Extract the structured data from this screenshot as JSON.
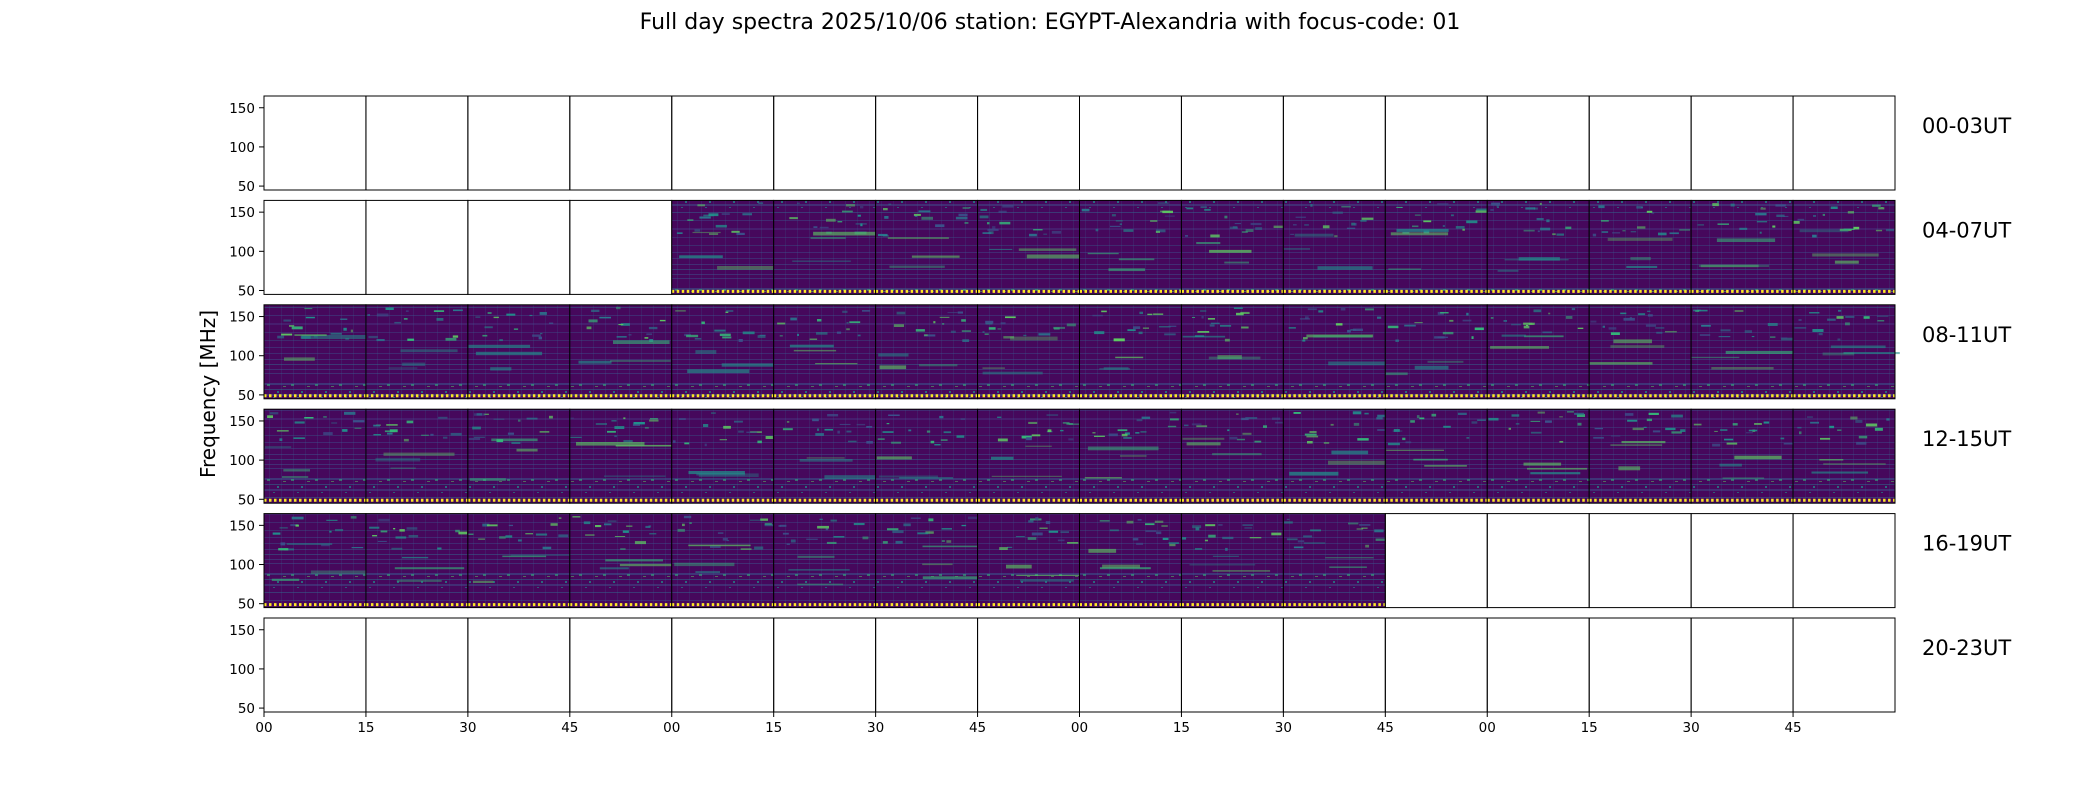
{
  "chart_data": {
    "type": "heatmap",
    "title": "Full day spectra 2025/10/06 station: EGYPT-Alexandria with focus-code: 01",
    "ylabel": "Frequency [MHz]",
    "xlabel": "",
    "ylim": [
      45,
      165
    ],
    "yticks": [
      "50",
      "100",
      "150"
    ],
    "xticks": [
      "00",
      "15",
      "30",
      "45",
      "00",
      "15",
      "30",
      "45",
      "00",
      "15",
      "30",
      "45",
      "00",
      "15",
      "30",
      "45"
    ],
    "colormap": "viridis",
    "colors": {
      "low": "#440154",
      "mid": "#21918c",
      "high": "#fde725",
      "frame": "#000000"
    },
    "rows": [
      {
        "label": "00-03UT",
        "panels_with_data": []
      },
      {
        "label": "04-07UT",
        "panels_with_data": [
          4,
          5,
          6,
          7,
          8,
          9,
          10,
          11,
          12,
          13,
          14,
          15
        ]
      },
      {
        "label": "08-11UT",
        "panels_with_data": [
          0,
          1,
          2,
          3,
          4,
          5,
          6,
          7,
          8,
          9,
          10,
          11,
          12,
          13,
          14,
          15
        ]
      },
      {
        "label": "12-15UT",
        "panels_with_data": [
          0,
          1,
          2,
          3,
          4,
          5,
          6,
          7,
          8,
          9,
          10,
          11,
          12,
          13,
          14,
          15
        ]
      },
      {
        "label": "16-19UT",
        "panels_with_data": [
          0,
          1,
          2,
          3,
          4,
          5,
          6,
          7,
          8,
          9,
          10
        ]
      },
      {
        "label": "20-23UT",
        "panels_with_data": []
      }
    ],
    "panels_per_row": 16,
    "minutes_per_panel": 15
  }
}
